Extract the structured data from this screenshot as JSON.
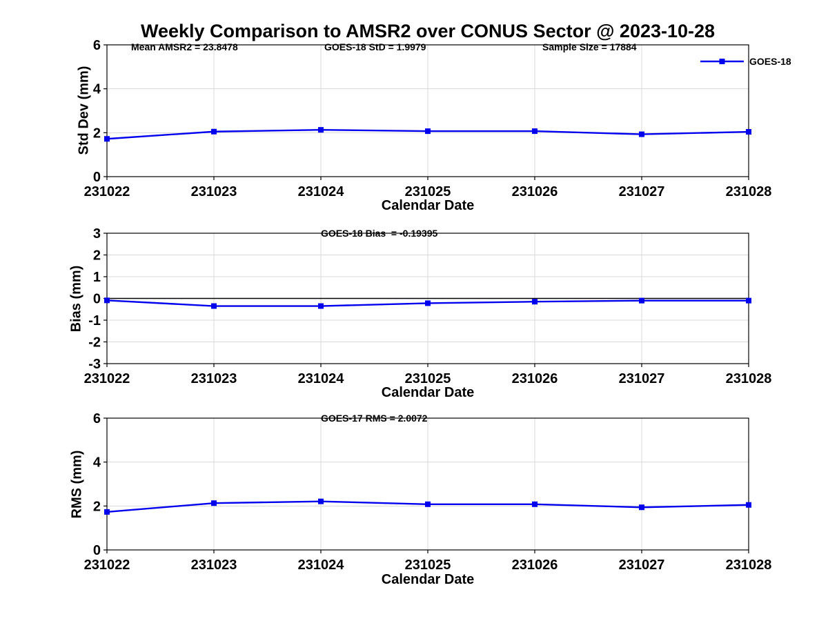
{
  "title": "Weekly Comparison to AMSR2 over CONUS Sector @ 2023-10-28",
  "legend": {
    "label": "GOES-18"
  },
  "colors": {
    "series": "#0000ee",
    "grid": "#d8d8d8",
    "axis": "#000000",
    "zero_line": "#000000",
    "background": "#ffffff",
    "text": "#000000"
  },
  "chart_data": [
    {
      "type": "line",
      "name": "std-dev",
      "annotations": [
        "Mean AMSR2 = 23.8478",
        "GOES-18 StD = 1.9979",
        "Sample Size = 17884"
      ],
      "ylabel": "Std Dev (mm)",
      "xlabel": "Calendar Date",
      "categories": [
        "231022",
        "231023",
        "231024",
        "231025",
        "231026",
        "231027",
        "231028"
      ],
      "ylim": [
        0,
        6
      ],
      "yticks": [
        0,
        2,
        4,
        6
      ],
      "grid": true,
      "legend_position": "northeast",
      "series": [
        {
          "name": "GOES-18",
          "values": [
            1.72,
            2.05,
            2.13,
            2.07,
            2.07,
            1.93,
            2.04
          ]
        }
      ]
    },
    {
      "type": "line",
      "name": "bias",
      "annotations": [
        "GOES-18 Bias  = -0.19395"
      ],
      "ylabel": "Bias (mm)",
      "xlabel": "Calendar Date",
      "categories": [
        "231022",
        "231023",
        "231024",
        "231025",
        "231026",
        "231027",
        "231028"
      ],
      "ylim": [
        -3,
        3
      ],
      "yticks": [
        -3,
        -2,
        -1,
        0,
        1,
        2,
        3
      ],
      "zero_line": true,
      "grid": true,
      "series": [
        {
          "name": "GOES-18",
          "values": [
            -0.09,
            -0.35,
            -0.35,
            -0.22,
            -0.15,
            -0.1,
            -0.1
          ]
        }
      ]
    },
    {
      "type": "line",
      "name": "rms",
      "annotations": [
        "GOES-17 RMS = 2.0072"
      ],
      "ylabel": "RMS (mm)",
      "xlabel": "Calendar Date",
      "categories": [
        "231022",
        "231023",
        "231024",
        "231025",
        "231026",
        "231027",
        "231028"
      ],
      "ylim": [
        0,
        6
      ],
      "yticks": [
        0,
        2,
        4,
        6
      ],
      "grid": true,
      "series": [
        {
          "name": "GOES-18",
          "values": [
            1.73,
            2.13,
            2.21,
            2.08,
            2.08,
            1.94,
            2.05
          ]
        }
      ]
    }
  ]
}
